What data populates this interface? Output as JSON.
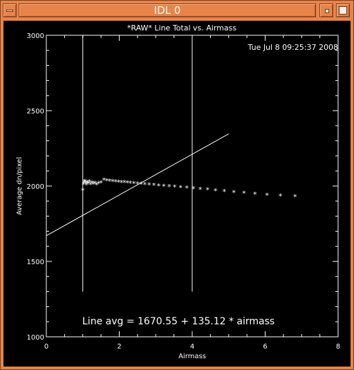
{
  "window": {
    "title": "IDL 0",
    "colors": {
      "frame": "#e8844a",
      "plot_background": "#000000",
      "plot_foreground": "#ffffff"
    }
  },
  "chart_data": {
    "type": "scatter",
    "title": "*RAW* Line Total vs. Airmass",
    "timestamp": "Tue Jul  8 09:25:37 2008",
    "xlabel": "Airmass",
    "ylabel": "Average dn/pixel",
    "xlim": [
      0,
      8
    ],
    "ylim": [
      1000,
      3000
    ],
    "x_ticks": [
      "0",
      "2",
      "4",
      "6",
      "8"
    ],
    "y_ticks": [
      "1000",
      "1500",
      "2000",
      "2500",
      "3000"
    ],
    "fit_label": "Line avg = 1670.55 + 135.12 * airmass",
    "fit": {
      "intercept": 1670.55,
      "slope": 135.12,
      "x_range": [
        0,
        5
      ]
    },
    "vertical_markers": [
      {
        "x": 1.0,
        "y_range": [
          1300,
          3000
        ]
      },
      {
        "x": 4.0,
        "y_range": [
          1300,
          3000
        ]
      }
    ],
    "points": [
      {
        "x": 1.0,
        "y": 1970
      },
      {
        "x": 1.02,
        "y": 2012
      },
      {
        "x": 1.04,
        "y": 2025
      },
      {
        "x": 1.06,
        "y": 2030
      },
      {
        "x": 1.08,
        "y": 2018
      },
      {
        "x": 1.1,
        "y": 2008
      },
      {
        "x": 1.12,
        "y": 2022
      },
      {
        "x": 1.15,
        "y": 2015
      },
      {
        "x": 1.18,
        "y": 2028
      },
      {
        "x": 1.21,
        "y": 2010
      },
      {
        "x": 1.25,
        "y": 2020
      },
      {
        "x": 1.29,
        "y": 2012
      },
      {
        "x": 1.33,
        "y": 2018
      },
      {
        "x": 1.38,
        "y": 2008
      },
      {
        "x": 1.43,
        "y": 2015
      },
      {
        "x": 1.5,
        "y": 2020
      },
      {
        "x": 1.58,
        "y": 2038
      },
      {
        "x": 1.66,
        "y": 2035
      },
      {
        "x": 1.74,
        "y": 2032
      },
      {
        "x": 1.82,
        "y": 2030
      },
      {
        "x": 1.9,
        "y": 2028
      },
      {
        "x": 1.98,
        "y": 2026
      },
      {
        "x": 2.06,
        "y": 2024
      },
      {
        "x": 2.14,
        "y": 2022
      },
      {
        "x": 2.22,
        "y": 2020
      },
      {
        "x": 2.3,
        "y": 2018
      },
      {
        "x": 2.4,
        "y": 2016
      },
      {
        "x": 2.5,
        "y": 2014
      },
      {
        "x": 2.6,
        "y": 2012
      },
      {
        "x": 2.7,
        "y": 2010
      },
      {
        "x": 2.82,
        "y": 2007
      },
      {
        "x": 2.95,
        "y": 2004
      },
      {
        "x": 3.08,
        "y": 2001
      },
      {
        "x": 3.22,
        "y": 1998
      },
      {
        "x": 3.37,
        "y": 1995
      },
      {
        "x": 3.52,
        "y": 1992
      },
      {
        "x": 3.68,
        "y": 1989
      },
      {
        "x": 3.85,
        "y": 1986
      },
      {
        "x": 4.03,
        "y": 1982
      },
      {
        "x": 4.22,
        "y": 1978
      },
      {
        "x": 4.42,
        "y": 1974
      },
      {
        "x": 4.64,
        "y": 1969
      },
      {
        "x": 4.88,
        "y": 1963
      },
      {
        "x": 5.14,
        "y": 1957
      },
      {
        "x": 5.42,
        "y": 1951
      },
      {
        "x": 5.72,
        "y": 1945
      },
      {
        "x": 6.05,
        "y": 1939
      },
      {
        "x": 6.42,
        "y": 1933
      },
      {
        "x": 6.82,
        "y": 1929
      }
    ]
  }
}
